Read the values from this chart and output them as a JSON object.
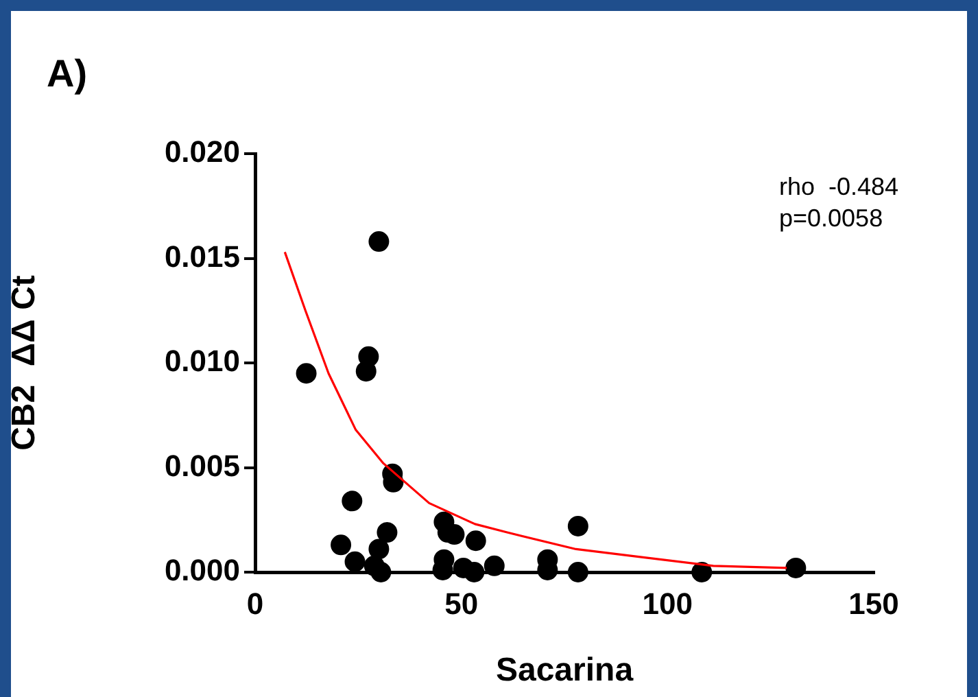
{
  "chart_data": {
    "type": "scatter",
    "title": "A)",
    "xlabel": "Sacarina",
    "ylabel": "CB2  ΔΔ Ct",
    "annotations": [
      "rho  -0.484",
      "p=0.0058"
    ],
    "series": [
      {
        "color": "#000000",
        "marker": "circle",
        "x": [
          30,
          12.4,
          27.5,
          26.9,
          33.3,
          33.5,
          23.5,
          20.8,
          32,
          24.2,
          30,
          28.9,
          30.5,
          45.8,
          48.3,
          46.7,
          53.5,
          45.8,
          45.5,
          50.5,
          53.1,
          58,
          70.9,
          70.9,
          78.3,
          78.3,
          108.3,
          131.1
        ],
        "values": [
          0.0158,
          0.0095,
          0.0103,
          0.0096,
          0.0047,
          0.0043,
          0.0034,
          0.0013,
          0.0019,
          0.0005,
          0.0011,
          0.0003,
          0.0,
          0.0024,
          0.0018,
          0.0019,
          0.0015,
          0.0006,
          0.0001,
          0.0002,
          0.0,
          0.0003,
          0.0006,
          0.0001,
          0.0022,
          0.0,
          0.0,
          0.0002
        ]
      },
      {
        "type": "line",
        "color": "#ff0000",
        "marker": "none",
        "line_style": "solid",
        "x": [
          7.2,
          12.2,
          17.8,
          24.4,
          31.1,
          42.2,
          53.3,
          61.1,
          77.8,
          94.4,
          111.1,
          128.9
        ],
        "values": [
          0.0153,
          0.0125,
          0.0095,
          0.0068,
          0.0052,
          0.0033,
          0.0023,
          0.0019,
          0.0011,
          0.0007,
          0.0003,
          0.0002
        ]
      }
    ],
    "xlim": [
      0,
      150
    ],
    "xticks": [
      0,
      50,
      100,
      150
    ],
    "ylim": [
      0,
      0.02
    ],
    "yticks": [
      {
        "value": 0,
        "label": "0.000"
      },
      {
        "value": 0.005,
        "label": "0.005"
      },
      {
        "value": 0.01,
        "label": "0.010"
      },
      {
        "value": 0.015,
        "label": "0.015"
      },
      {
        "value": 0.02,
        "label": "0.020"
      }
    ],
    "grid": false,
    "legend": false
  }
}
